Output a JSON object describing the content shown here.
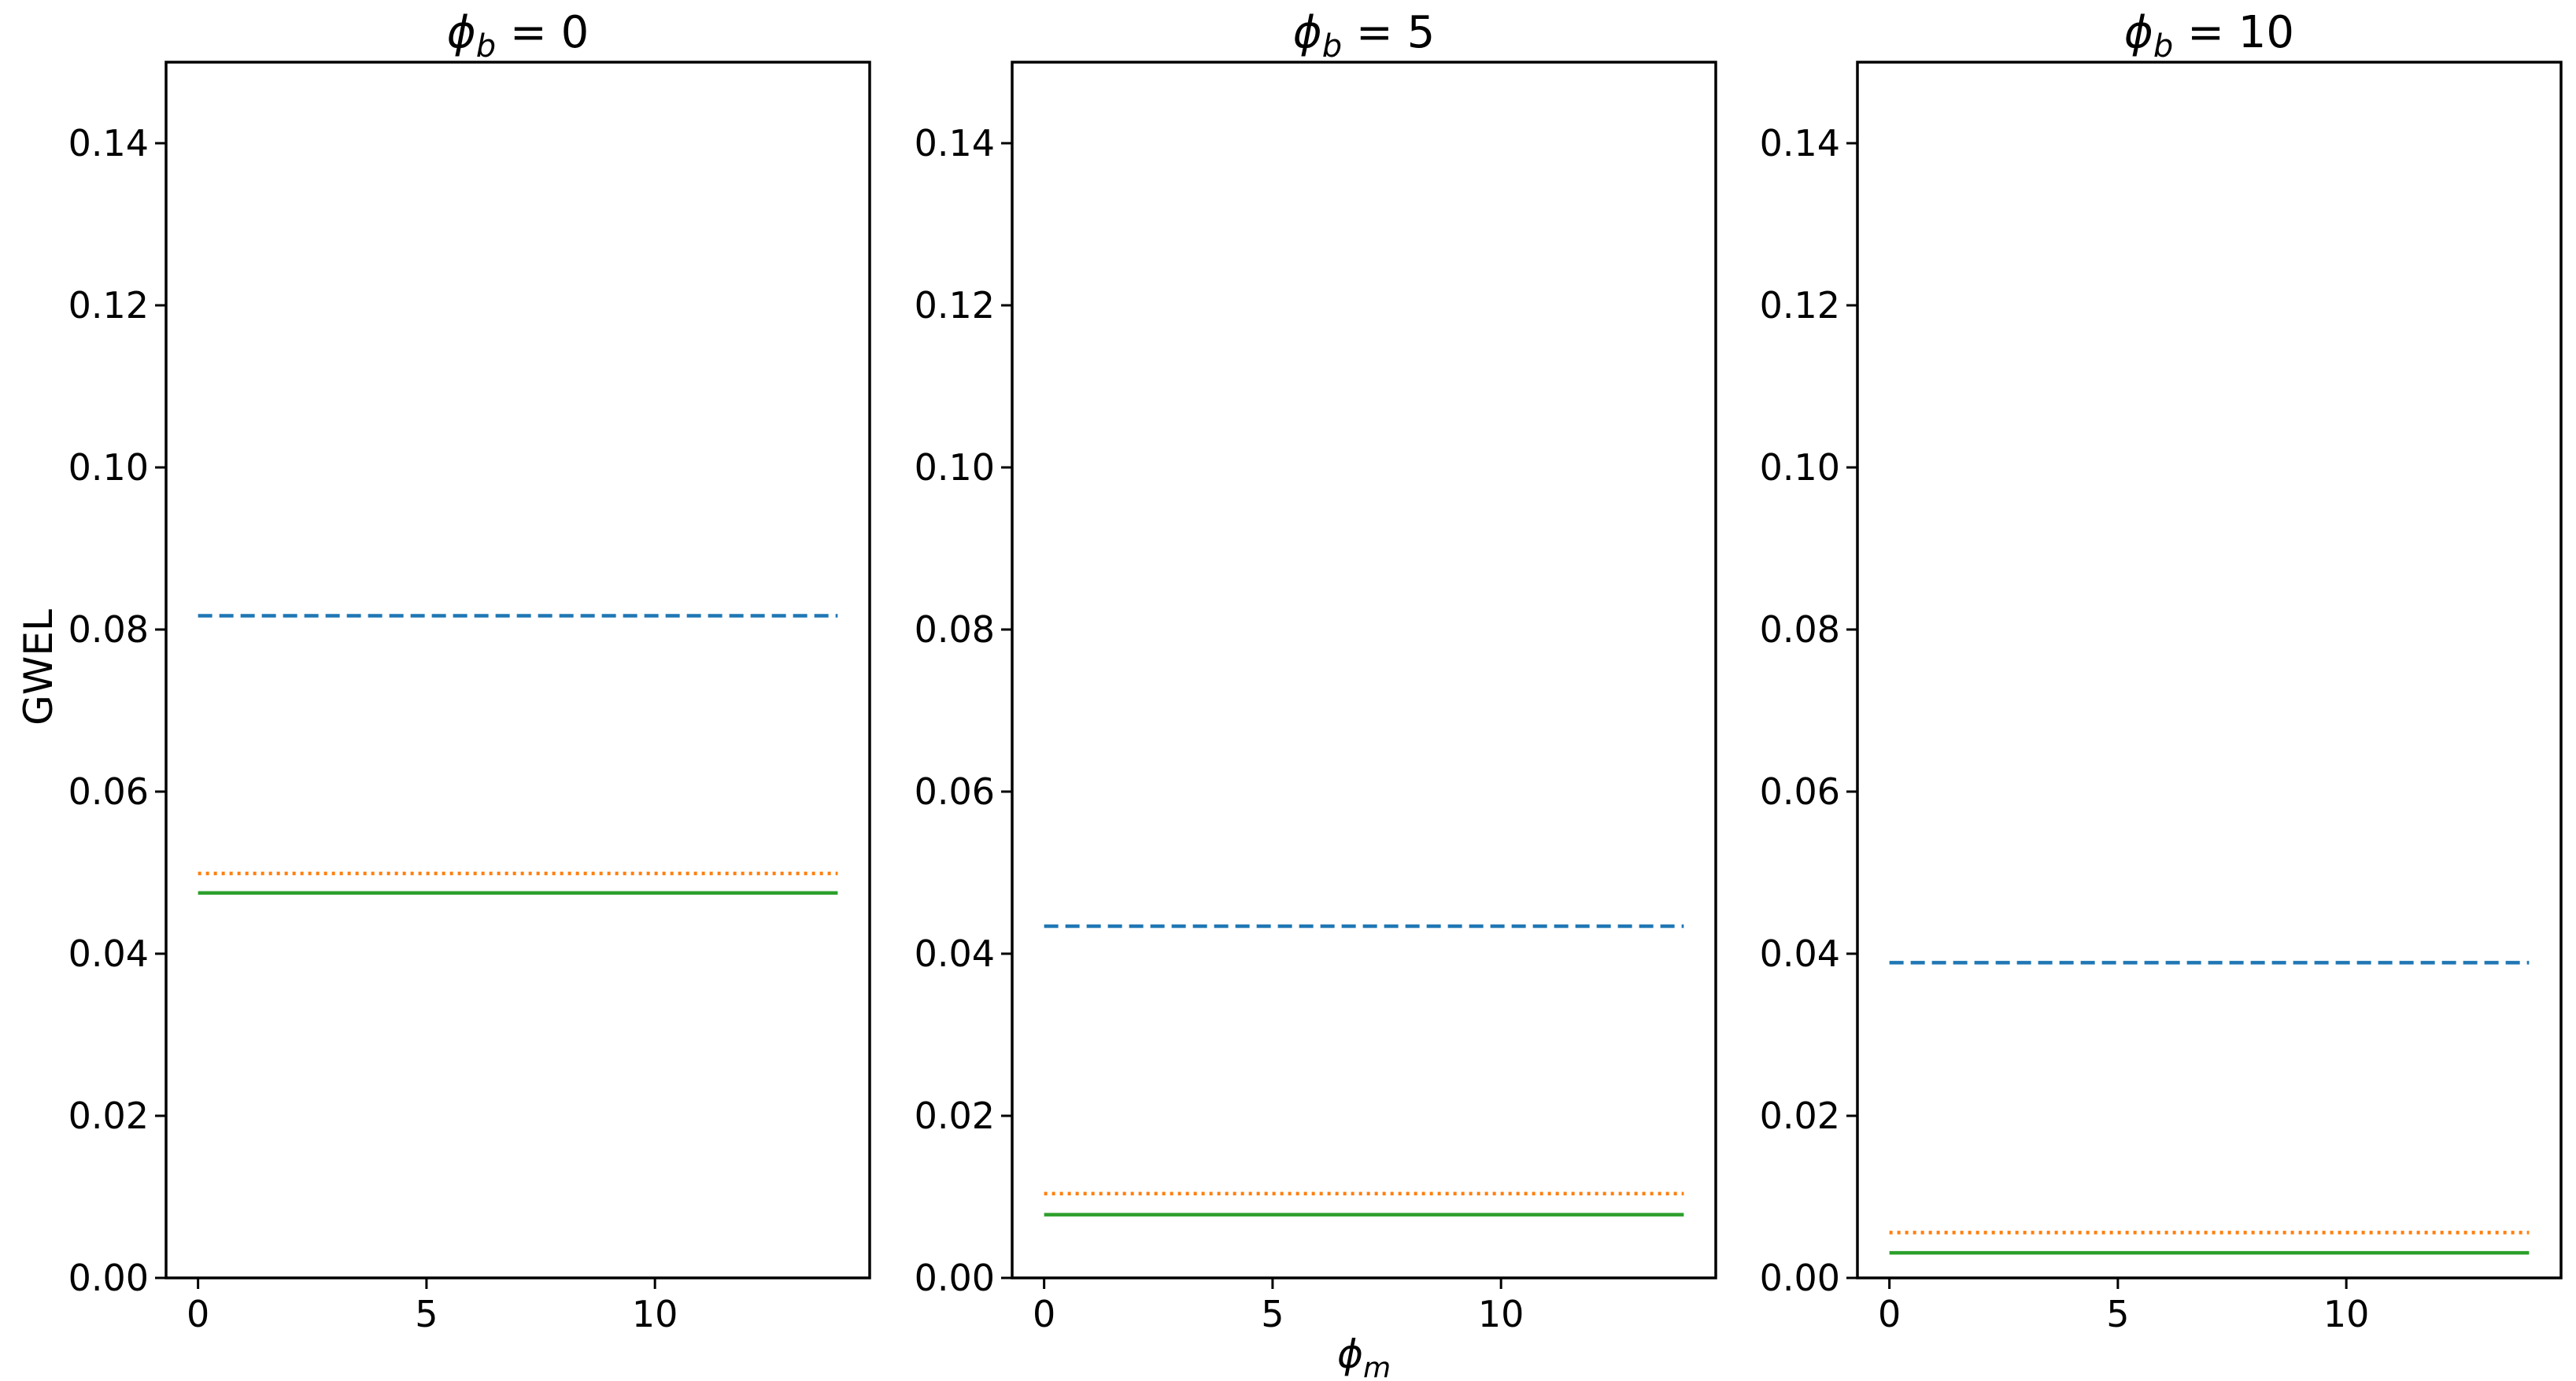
{
  "chart_data": {
    "type": "line",
    "ylabel": "GWEL",
    "xlabel": "ϕ",
    "xlabel_subscript": "m",
    "title_prefix": "ϕ",
    "title_subscript": "b",
    "xlim": [
      -0.7,
      14.7
    ],
    "ylim": [
      0,
      0.15
    ],
    "xticks": [
      0,
      5,
      10
    ],
    "xtick_labels": [
      "0",
      "5",
      "10"
    ],
    "yticks": [
      0,
      0.02,
      0.04,
      0.06,
      0.08,
      0.1,
      0.12,
      0.14
    ],
    "ytick_labels": [
      "0.00",
      "0.02",
      "0.04",
      "0.06",
      "0.08",
      "0.10",
      "0.12",
      "0.14"
    ],
    "grid": false,
    "colors": {
      "series_1": "#1f77b4",
      "series_2": "#ff7f0e",
      "series_3": "#2ca02c"
    },
    "panels": [
      {
        "title_value": "0",
        "x": [
          0,
          14
        ],
        "series": [
          {
            "style": "dashed",
            "color": "#1f77b4",
            "values": [
              0.0817,
              0.0817
            ]
          },
          {
            "style": "dotted",
            "color": "#ff7f0e",
            "values": [
              0.0499,
              0.0499
            ]
          },
          {
            "style": "solid",
            "color": "#2ca02c",
            "values": [
              0.0475,
              0.0475
            ]
          }
        ]
      },
      {
        "title_value": "5",
        "x": [
          0,
          14
        ],
        "series": [
          {
            "style": "dashed",
            "color": "#1f77b4",
            "values": [
              0.0434,
              0.0434
            ]
          },
          {
            "style": "dotted",
            "color": "#ff7f0e",
            "values": [
              0.0104,
              0.0104
            ]
          },
          {
            "style": "solid",
            "color": "#2ca02c",
            "values": [
              0.0078,
              0.0078
            ]
          }
        ]
      },
      {
        "title_value": "10",
        "x": [
          0,
          14
        ],
        "series": [
          {
            "style": "dashed",
            "color": "#1f77b4",
            "values": [
              0.0389,
              0.0389
            ]
          },
          {
            "style": "dotted",
            "color": "#ff7f0e",
            "values": [
              0.0056,
              0.0056
            ]
          },
          {
            "style": "solid",
            "color": "#2ca02c",
            "values": [
              0.0031,
              0.0031
            ]
          }
        ]
      }
    ]
  }
}
